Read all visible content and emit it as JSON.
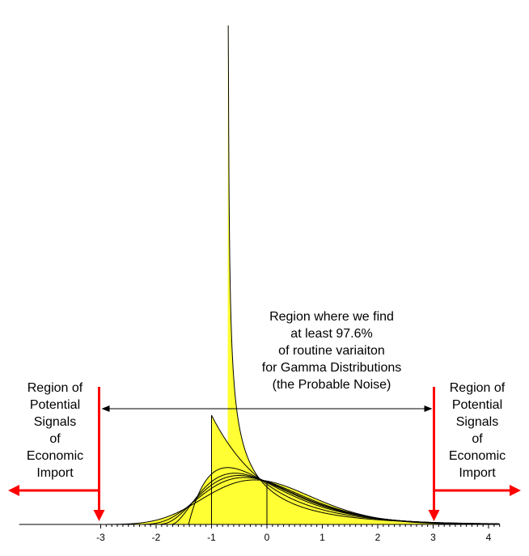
{
  "chart_data": {
    "type": "area",
    "title": "",
    "xlabel": "",
    "ylabel": "",
    "x_ticks": [
      "-3",
      "-2",
      "-1",
      "0",
      "1",
      "2",
      "3",
      "4"
    ],
    "xlim": [
      -3.1,
      4.2
    ],
    "fill_color": "#ffff33",
    "curve_color": "#000000",
    "annotation_color": "#ff0000",
    "series": [
      {
        "shape": 1.0,
        "mode": -1.0,
        "peak": "truncated"
      },
      {
        "shape": 2.0,
        "mode": -0.71
      },
      {
        "shape": 3.0,
        "mode": -0.58
      },
      {
        "shape": 4.0,
        "mode": -0.5
      },
      {
        "shape": 6.0,
        "mode": -0.41
      },
      {
        "shape": 0.5,
        "mode": -0.71,
        "peak": "spike"
      },
      {
        "shape": 20.0,
        "mode": -0.22
      }
    ],
    "bracket_range": [
      -3,
      3
    ]
  },
  "annotations": {
    "center": [
      "Region where we find",
      "at least 97.6%",
      "of routine variaiton",
      "for Gamma Distributions",
      "(the Probable Noise)"
    ],
    "left": [
      "Region of",
      "Potential",
      "Signals",
      "of",
      "Economic",
      "Import"
    ],
    "right": [
      "Region of",
      "Potential",
      "Signals",
      "of",
      "Economic",
      "Import"
    ]
  }
}
